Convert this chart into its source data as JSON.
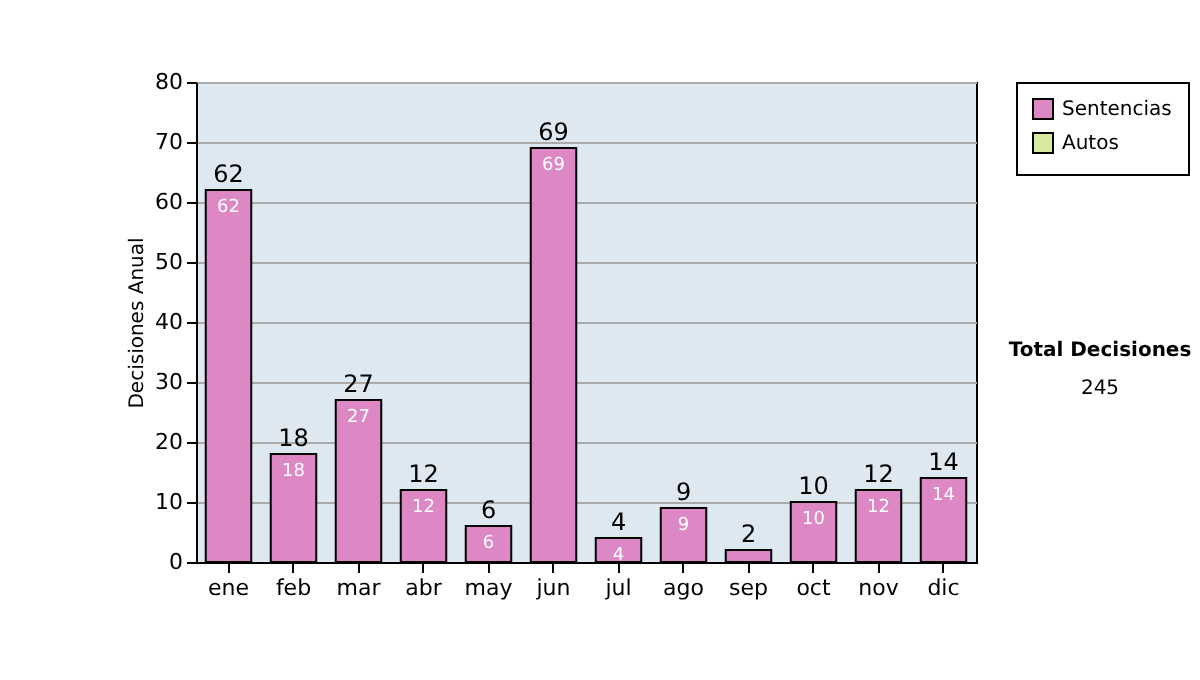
{
  "chart_data": {
    "type": "bar",
    "ylabel": "Decisiones Anual",
    "categories": [
      "ene",
      "feb",
      "mar",
      "abr",
      "may",
      "jun",
      "jul",
      "ago",
      "sep",
      "oct",
      "nov",
      "dic"
    ],
    "series": [
      {
        "name": "Sentencias",
        "color": "#dd88c4",
        "values": [
          62,
          18,
          27,
          12,
          6,
          69,
          4,
          9,
          2,
          10,
          12,
          14
        ],
        "value_labels": [
          "62",
          "18",
          "27",
          "12",
          "6",
          "69",
          "4",
          "9",
          null,
          "10",
          "12",
          "14"
        ]
      },
      {
        "name": "Autos",
        "color": "#d8eaa0",
        "values": [
          null,
          null,
          null,
          null,
          null,
          null,
          null,
          null,
          null,
          null,
          null,
          null
        ]
      }
    ],
    "stacked": true,
    "totals": [
      "62",
      "18",
      "27",
      "12",
      "6",
      "69",
      "4",
      "9",
      "2",
      "10",
      "12",
      "14"
    ],
    "ylim": [
      0,
      80
    ],
    "yticks": [
      0,
      10,
      20,
      30,
      40,
      50,
      60,
      70,
      80
    ],
    "grid": "y",
    "legend": "right",
    "annotations": [
      "Total Decisiones",
      "245"
    ]
  }
}
